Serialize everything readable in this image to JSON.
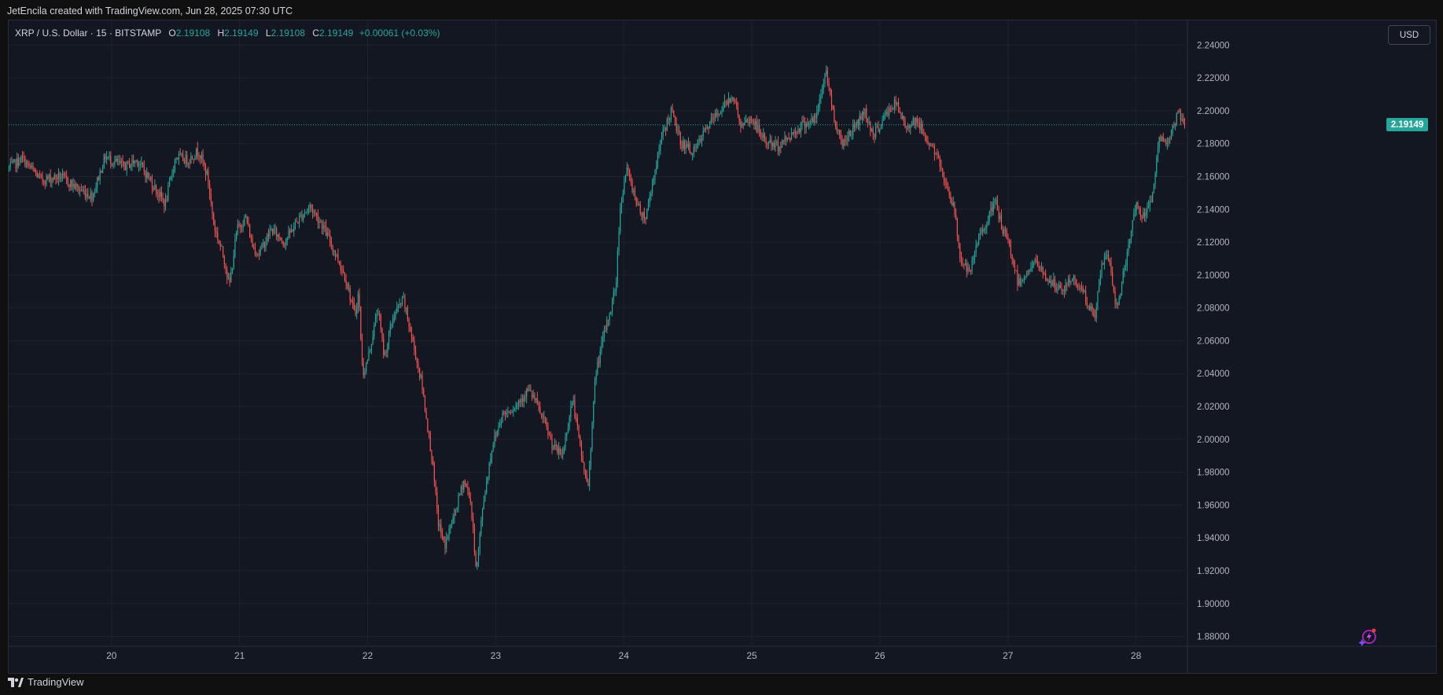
{
  "attribution": "JetEncila created with TradingView.com, Jun 28, 2025 07:30 UTC",
  "legend": {
    "symbol": "XRP / U.S. Dollar · 15 · BITSTAMP",
    "open_label": "O",
    "open_value": "2.19108",
    "high_label": "H",
    "high_value": "2.19149",
    "low_label": "L",
    "low_value": "2.19108",
    "close_label": "C",
    "close_value": "2.19149",
    "change": "+0.00061 (+0.03%)"
  },
  "currency_button": "USD",
  "last_price_badge": "2.19149",
  "footer_brand": "TradingView",
  "icons": {
    "footer": "tradingview-logo-icon",
    "assistant": "sparkle-assistant-icon"
  },
  "colors": {
    "background": "#131722",
    "up": "#26a69a",
    "down": "#ef5350",
    "grid": "#1e222d",
    "text": "#d1d4dc"
  },
  "chart_data": {
    "type": "candlestick",
    "x_axis": {
      "type": "date",
      "range": [
        19.2,
        28.38
      ],
      "ticks": [
        "20",
        "21",
        "22",
        "23",
        "24",
        "25",
        "26",
        "27",
        "28"
      ]
    },
    "y_axis": {
      "range": [
        1.875,
        2.255
      ],
      "ticks": [
        "2.24000",
        "2.22000",
        "2.20000",
        "2.18000",
        "2.16000",
        "2.14000",
        "2.12000",
        "2.10000",
        "2.08000",
        "2.06000",
        "2.04000",
        "2.02000",
        "2.00000",
        "1.98000",
        "1.96000",
        "1.94000",
        "1.92000",
        "1.90000",
        "1.88000"
      ]
    },
    "grid": true,
    "last_price": 2.19149,
    "close_path": [
      [
        19.2,
        2.165
      ],
      [
        19.3,
        2.171
      ],
      [
        19.45,
        2.158
      ],
      [
        19.6,
        2.16
      ],
      [
        19.75,
        2.152
      ],
      [
        19.85,
        2.148
      ],
      [
        19.95,
        2.172
      ],
      [
        20.1,
        2.166
      ],
      [
        20.2,
        2.17
      ],
      [
        20.3,
        2.158
      ],
      [
        20.42,
        2.143
      ],
      [
        20.5,
        2.172
      ],
      [
        20.6,
        2.17
      ],
      [
        20.68,
        2.176
      ],
      [
        20.75,
        2.16
      ],
      [
        20.8,
        2.13
      ],
      [
        20.88,
        2.11
      ],
      [
        20.92,
        2.093
      ],
      [
        20.98,
        2.128
      ],
      [
        21.05,
        2.135
      ],
      [
        21.1,
        2.118
      ],
      [
        21.15,
        2.113
      ],
      [
        21.25,
        2.128
      ],
      [
        21.35,
        2.12
      ],
      [
        21.45,
        2.133
      ],
      [
        21.55,
        2.142
      ],
      [
        21.65,
        2.13
      ],
      [
        21.75,
        2.113
      ],
      [
        21.83,
        2.098
      ],
      [
        21.9,
        2.075
      ],
      [
        21.93,
        2.09
      ],
      [
        21.96,
        2.04
      ],
      [
        21.99,
        2.045
      ],
      [
        22.03,
        2.06
      ],
      [
        22.08,
        2.08
      ],
      [
        22.13,
        2.05
      ],
      [
        22.2,
        2.075
      ],
      [
        22.28,
        2.085
      ],
      [
        22.35,
        2.06
      ],
      [
        22.42,
        2.035
      ],
      [
        22.5,
        1.99
      ],
      [
        22.55,
        1.95
      ],
      [
        22.6,
        1.935
      ],
      [
        22.68,
        1.955
      ],
      [
        22.75,
        1.975
      ],
      [
        22.8,
        1.965
      ],
      [
        22.85,
        1.92
      ],
      [
        22.9,
        1.96
      ],
      [
        22.97,
        1.995
      ],
      [
        23.05,
        2.015
      ],
      [
        23.15,
        2.02
      ],
      [
        23.25,
        2.03
      ],
      [
        23.3,
        2.025
      ],
      [
        23.38,
        2.01
      ],
      [
        23.45,
        1.995
      ],
      [
        23.52,
        1.99
      ],
      [
        23.6,
        2.025
      ],
      [
        23.67,
        1.99
      ],
      [
        23.72,
        1.97
      ],
      [
        23.78,
        2.04
      ],
      [
        23.85,
        2.065
      ],
      [
        23.9,
        2.08
      ],
      [
        23.94,
        2.095
      ],
      [
        23.97,
        2.14
      ],
      [
        24.02,
        2.165
      ],
      [
        24.08,
        2.15
      ],
      [
        24.12,
        2.14
      ],
      [
        24.17,
        2.135
      ],
      [
        24.22,
        2.155
      ],
      [
        24.3,
        2.185
      ],
      [
        24.37,
        2.2
      ],
      [
        24.45,
        2.18
      ],
      [
        24.55,
        2.175
      ],
      [
        24.65,
        2.19
      ],
      [
        24.75,
        2.2
      ],
      [
        24.85,
        2.21
      ],
      [
        24.92,
        2.19
      ],
      [
        25.0,
        2.195
      ],
      [
        25.1,
        2.182
      ],
      [
        25.2,
        2.178
      ],
      [
        25.3,
        2.185
      ],
      [
        25.4,
        2.192
      ],
      [
        25.5,
        2.195
      ],
      [
        25.58,
        2.225
      ],
      [
        25.63,
        2.2
      ],
      [
        25.7,
        2.18
      ],
      [
        25.8,
        2.19
      ],
      [
        25.88,
        2.2
      ],
      [
        25.95,
        2.185
      ],
      [
        26.05,
        2.198
      ],
      [
        26.12,
        2.205
      ],
      [
        26.2,
        2.19
      ],
      [
        26.28,
        2.195
      ],
      [
        26.35,
        2.185
      ],
      [
        26.43,
        2.175
      ],
      [
        26.5,
        2.16
      ],
      [
        26.58,
        2.14
      ],
      [
        26.63,
        2.11
      ],
      [
        26.7,
        2.1
      ],
      [
        26.78,
        2.125
      ],
      [
        26.85,
        2.135
      ],
      [
        26.9,
        2.145
      ],
      [
        26.95,
        2.13
      ],
      [
        27.02,
        2.115
      ],
      [
        27.08,
        2.095
      ],
      [
        27.15,
        2.102
      ],
      [
        27.22,
        2.108
      ],
      [
        27.28,
        2.1
      ],
      [
        27.35,
        2.095
      ],
      [
        27.42,
        2.09
      ],
      [
        27.5,
        2.098
      ],
      [
        27.58,
        2.092
      ],
      [
        27.63,
        2.08
      ],
      [
        27.68,
        2.075
      ],
      [
        27.73,
        2.105
      ],
      [
        27.78,
        2.115
      ],
      [
        27.82,
        2.09
      ],
      [
        27.85,
        2.08
      ],
      [
        27.9,
        2.1
      ],
      [
        27.95,
        2.12
      ],
      [
        28.0,
        2.145
      ],
      [
        28.05,
        2.135
      ],
      [
        28.1,
        2.14
      ],
      [
        28.14,
        2.155
      ],
      [
        28.18,
        2.185
      ],
      [
        28.22,
        2.18
      ],
      [
        28.28,
        2.188
      ],
      [
        28.33,
        2.198
      ],
      [
        28.38,
        2.19149
      ]
    ]
  }
}
